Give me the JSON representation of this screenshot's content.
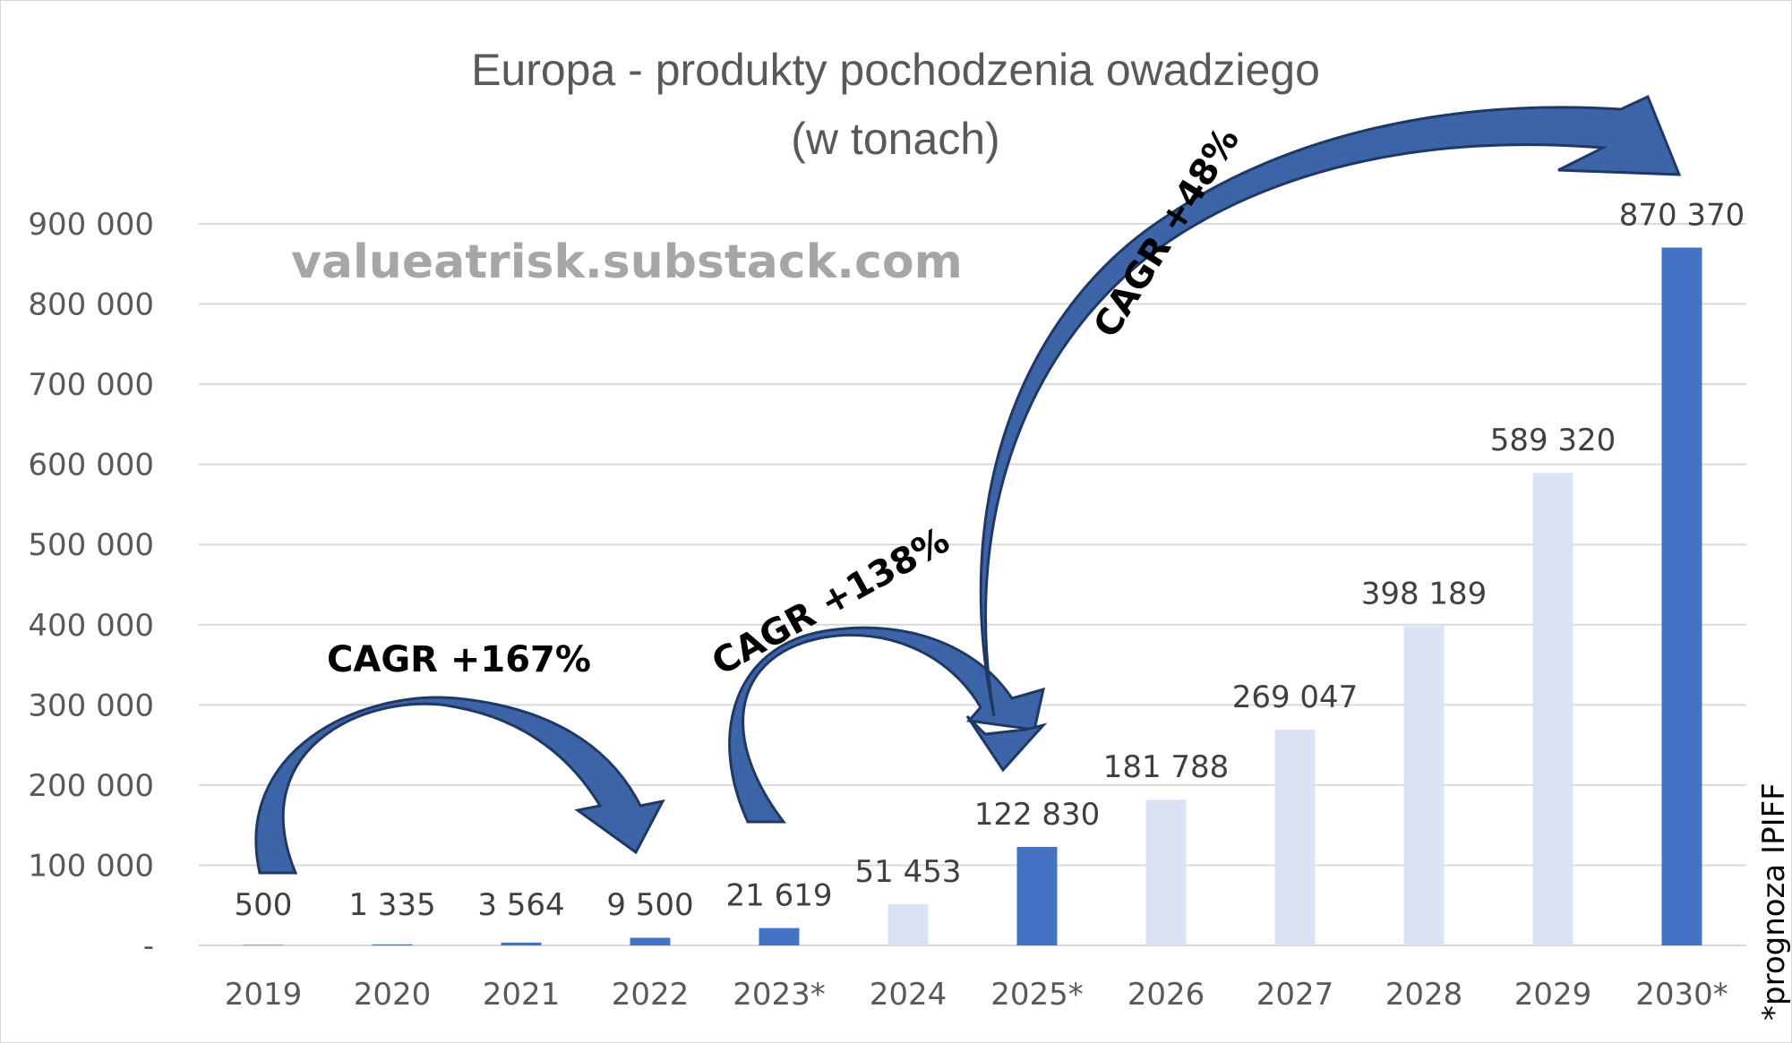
{
  "chart_data": {
    "type": "bar",
    "title": "Europa - produkty pochodzenia owadziego",
    "subtitle": "(w tonach)",
    "categories": [
      "2019",
      "2020",
      "2021",
      "2022",
      "2023*",
      "2024",
      "2025*",
      "2026",
      "2027",
      "2028",
      "2029",
      "2030*"
    ],
    "values": [
      500,
      1335,
      3564,
      9500,
      21619,
      51453,
      122830,
      181788,
      269047,
      398189,
      589320,
      870370
    ],
    "value_labels": [
      "500",
      "1 335",
      "3 564",
      "9 500",
      "21 619",
      "51 453",
      "122 830",
      "181 788",
      "269 047",
      "398 189",
      "589 320",
      "870 370"
    ],
    "highlighted": [
      true,
      true,
      true,
      true,
      true,
      false,
      true,
      false,
      false,
      false,
      false,
      true
    ],
    "colors": {
      "highlight": "#4472c4",
      "normal": "#dae3f3",
      "grid": "#d9d9d9",
      "arrow_fill": "#3e64a8",
      "arrow_stroke": "#1f3864"
    },
    "ylim": [
      0,
      900000
    ],
    "yticks": [
      0,
      100000,
      200000,
      300000,
      400000,
      500000,
      600000,
      700000,
      800000,
      900000
    ],
    "ytick_labels": [
      "-",
      "100 000",
      "200 000",
      "300 000",
      "400 000",
      "500 000",
      "600 000",
      "700 000",
      "800 000",
      "900 000"
    ],
    "grid": true,
    "legend": "none",
    "xlabel": "",
    "ylabel": "",
    "watermark": "valueatrisk.substack.com",
    "annotations": [
      {
        "text": "CAGR +167%",
        "from": "2019",
        "to": "2022"
      },
      {
        "text": "CAGR +138%",
        "from": "2023*",
        "to": "2025*"
      },
      {
        "text": "CAGR +48%",
        "from": "2025*",
        "to": "2030*"
      }
    ],
    "note": "*prognoza IPIFF"
  }
}
